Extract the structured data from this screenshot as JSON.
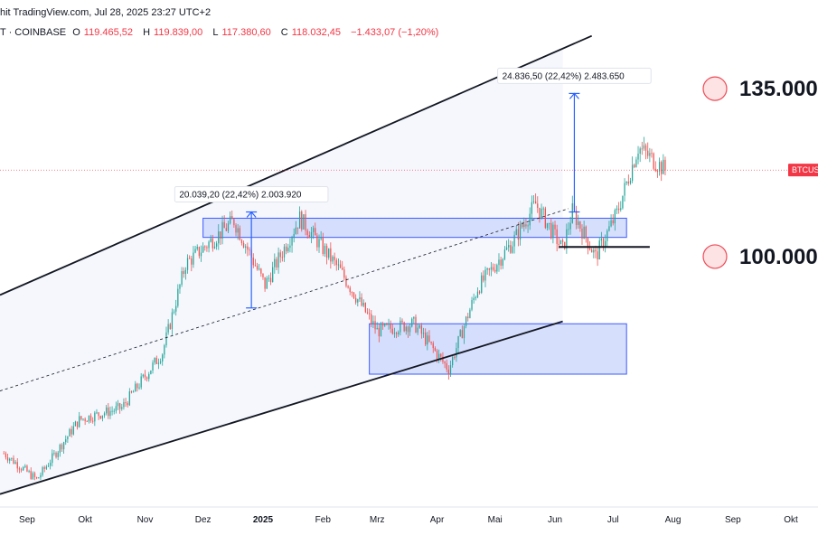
{
  "header": {
    "line1": "hit TradingView.com, Jul 28, 2025 23:27 UTC+2",
    "symbol_prefix": "T · COINBASE",
    "open_label": "O",
    "open": "119.465,52",
    "high_label": "H",
    "high": "119.839,00",
    "low_label": "L",
    "low": "117.380,60",
    "close_label": "C",
    "close": "118.032,45",
    "change": "−1.433,07 (−1,20%)"
  },
  "price_tag": "BTCUS",
  "annotations": {
    "measure1": "20.039,20 (22,42%) 2.003.920",
    "measure2": "24.836,50 (22,42%) 2.483.650",
    "target_high": "135.000",
    "target_low": "100.000"
  },
  "colors": {
    "up": "#26a69a",
    "down": "#ef5350",
    "zone_fill": "#cfd9fb",
    "zone_stroke": "#3d5afe",
    "channel_fill": "#f5f7fd",
    "marker_fill": "#fde3e4",
    "marker_stroke": "#ef4a57"
  },
  "chart_data": {
    "type": "candlestick",
    "x_labels": [
      {
        "label": "Sep",
        "date": "2024-09-01"
      },
      {
        "label": "Okt",
        "date": "2024-10-01"
      },
      {
        "label": "Nov",
        "date": "2024-11-01"
      },
      {
        "label": "Dez",
        "date": "2024-12-01"
      },
      {
        "label": "2025",
        "date": "2025-01-01",
        "bold": true
      },
      {
        "label": "Feb",
        "date": "2025-02-01"
      },
      {
        "label": "Mrz",
        "date": "2025-03-01"
      },
      {
        "label": "Apr",
        "date": "2025-04-01"
      },
      {
        "label": "Mai",
        "date": "2025-05-01"
      },
      {
        "label": "Jun",
        "date": "2025-06-01"
      },
      {
        "label": "Jul",
        "date": "2025-07-01"
      },
      {
        "label": "Aug",
        "date": "2025-08-01"
      },
      {
        "label": "Sep",
        "date": "2025-09-01"
      },
      {
        "label": "Okt",
        "date": "2025-10-01"
      }
    ],
    "date_range": [
      "2024-08-18",
      "2025-10-15"
    ],
    "price_range": [
      48000,
      145000
    ],
    "key_prices": [
      {
        "date": "2024-08-20",
        "price": 59000
      },
      {
        "date": "2024-09-06",
        "price": 53500
      },
      {
        "date": "2024-09-28",
        "price": 66000
      },
      {
        "date": "2024-10-20",
        "price": 68500
      },
      {
        "date": "2024-11-10",
        "price": 80000
      },
      {
        "date": "2024-11-22",
        "price": 98500
      },
      {
        "date": "2024-12-17",
        "price": 107500
      },
      {
        "date": "2025-01-02",
        "price": 94000
      },
      {
        "date": "2025-01-20",
        "price": 108000
      },
      {
        "date": "2025-02-10",
        "price": 97000
      },
      {
        "date": "2025-03-01",
        "price": 84500
      },
      {
        "date": "2025-03-20",
        "price": 86000
      },
      {
        "date": "2025-04-07",
        "price": 76500
      },
      {
        "date": "2025-04-22",
        "price": 93500
      },
      {
        "date": "2025-05-10",
        "price": 103000
      },
      {
        "date": "2025-05-22",
        "price": 111000
      },
      {
        "date": "2025-06-05",
        "price": 101500
      },
      {
        "date": "2025-06-10",
        "price": 109500
      },
      {
        "date": "2025-06-22",
        "price": 100000
      },
      {
        "date": "2025-07-03",
        "price": 109000
      },
      {
        "date": "2025-07-14",
        "price": 122800
      },
      {
        "date": "2025-07-28",
        "price": 118032
      }
    ],
    "channel_upper": [
      {
        "date": "2024-08-18",
        "price": 92000
      },
      {
        "date": "2025-06-20",
        "price": 146000
      }
    ],
    "channel_lower": [
      {
        "date": "2024-08-18",
        "price": 50500
      },
      {
        "date": "2025-06-05",
        "price": 86500
      }
    ],
    "channel_mid": [
      {
        "date": "2024-08-18",
        "price": 72000
      },
      {
        "date": "2025-06-08",
        "price": 110000
      }
    ],
    "zones": [
      {
        "start": "2024-12-01",
        "end": "2025-07-08",
        "low": 104000,
        "high": 108000
      },
      {
        "start": "2025-02-25",
        "end": "2025-07-08",
        "low": 75500,
        "high": 86000
      }
    ],
    "measures": [
      {
        "date": "2024-12-26",
        "from": 89300,
        "to": 109300
      },
      {
        "date": "2025-06-11",
        "from": 109300,
        "to": 134000
      }
    ],
    "support_line": {
      "start": "2025-06-03",
      "end": "2025-07-20",
      "price": 102000
    },
    "targets": [
      135000,
      100000
    ],
    "current_price": 118032
  }
}
